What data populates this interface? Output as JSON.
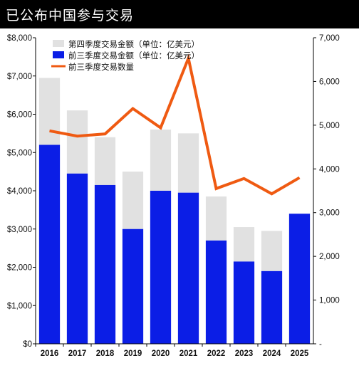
{
  "header": {
    "title": "已公布中国参与交易"
  },
  "chart_data": {
    "type": "bar",
    "categories": [
      "2016",
      "2017",
      "2018",
      "2019",
      "2020",
      "2021",
      "2022",
      "2023",
      "2024",
      "2025"
    ],
    "series": [
      {
        "name": "第四季度交易金额（单位：亿美元）",
        "kind": "bar-stacked-top",
        "axis": "left",
        "color": "#e1e1e1",
        "values": [
          1750,
          1650,
          1250,
          1500,
          1600,
          1550,
          1150,
          900,
          1050,
          null
        ]
      },
      {
        "name": "前三季度交易金额（单位：亿美元）",
        "kind": "bar",
        "axis": "left",
        "color": "#0b1ee6",
        "values": [
          5200,
          4450,
          4150,
          3000,
          4000,
          3950,
          2700,
          2150,
          1900,
          3400
        ]
      },
      {
        "name": "前三季度交易数量",
        "kind": "line",
        "axis": "right",
        "color": "#ef5a12",
        "values": [
          4870,
          4750,
          4800,
          5380,
          4940,
          6530,
          3550,
          3780,
          3430,
          3800
        ]
      }
    ],
    "left_axis": {
      "ylim": [
        0,
        8000
      ],
      "ticks": [
        "$0",
        "$1,000",
        "$2,000",
        "$3,000",
        "$4,000",
        "$5,000",
        "$6,000",
        "$7,000",
        "$8,000"
      ]
    },
    "right_axis": {
      "ylim": [
        0,
        7000
      ],
      "ticks": [
        "-",
        "1,000",
        "2,000",
        "3,000",
        "4,000",
        "5,000",
        "6,000",
        "7,000"
      ]
    },
    "legend_position": "top-left",
    "grid": false
  }
}
